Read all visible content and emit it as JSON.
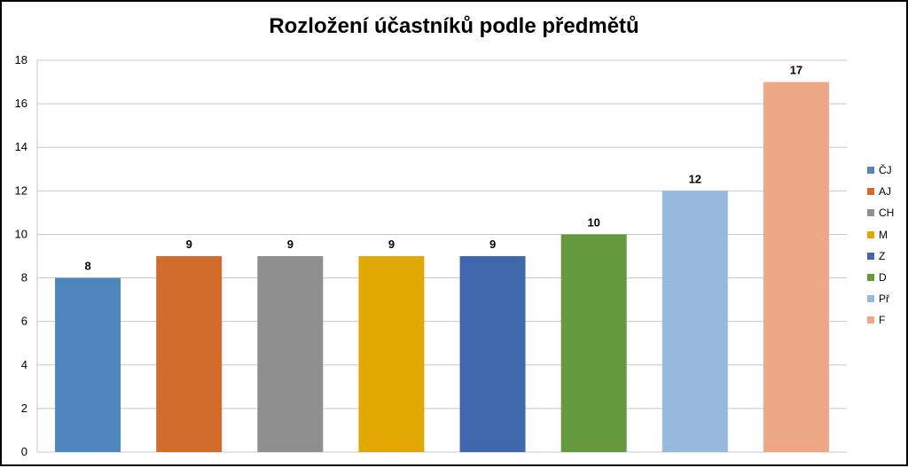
{
  "chart_data": {
    "type": "bar",
    "title": "Rozložení účastníků podle předmětů",
    "categories": [
      "ČJ",
      "AJ",
      "CH",
      "M",
      "Z",
      "D",
      "Př",
      "F"
    ],
    "values": [
      8,
      9,
      9,
      9,
      9,
      10,
      12,
      17
    ],
    "colors": [
      "#4E86BE",
      "#D26C2C",
      "#8F8F8F",
      "#E0A800",
      "#3F67AC",
      "#64993E",
      "#97B8DF",
      "#EFA886"
    ],
    "ylim": [
      0,
      18
    ],
    "yticks": [
      0,
      2,
      4,
      6,
      8,
      10,
      12,
      14,
      16,
      18
    ],
    "grid": true,
    "legend_position": "right"
  }
}
